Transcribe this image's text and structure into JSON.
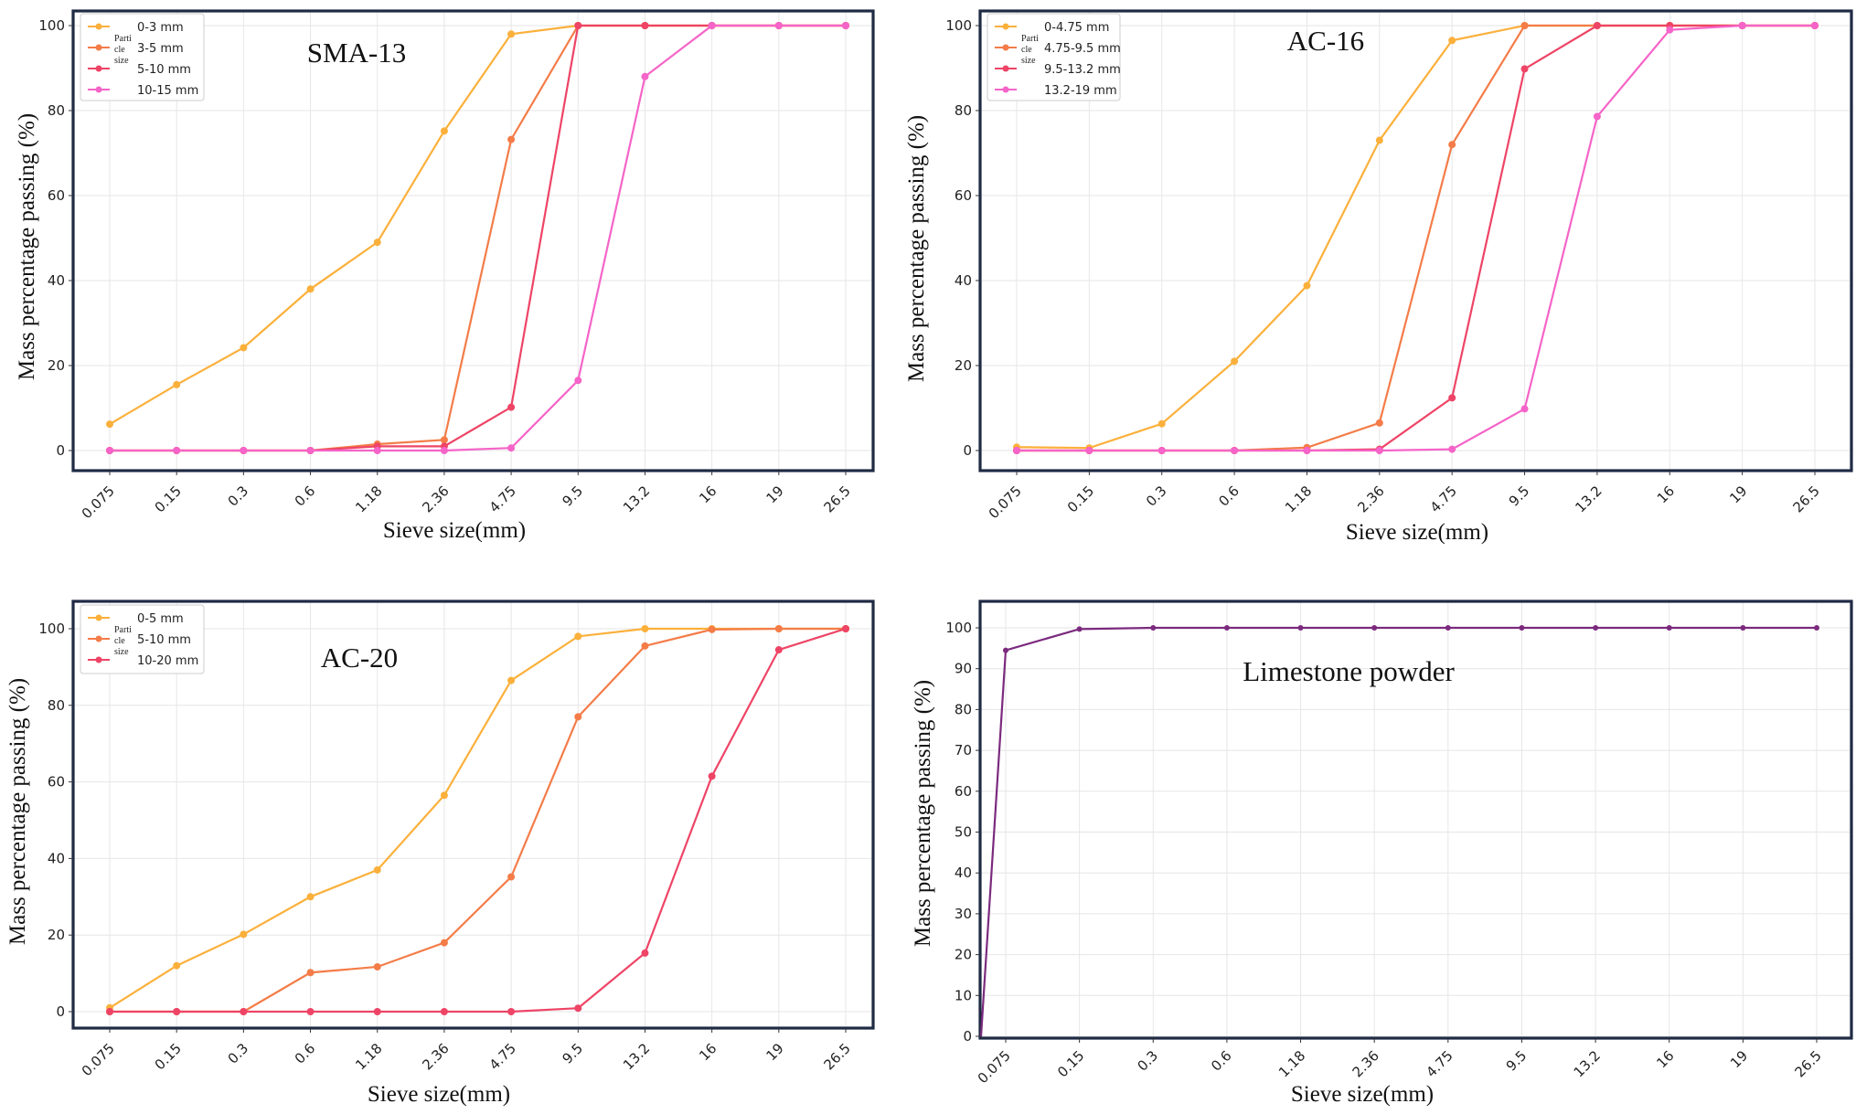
{
  "chart_data": [
    {
      "type": "line",
      "title": "SMA-13",
      "xlabel": "Sieve size(mm)",
      "ylabel": "Mass percentage passing (%)",
      "ylim": [
        0,
        100
      ],
      "yticks": [
        "0",
        "20",
        "40",
        "60",
        "80",
        "100"
      ],
      "categories": [
        "0.075",
        "0.15",
        "0.3",
        "0.6",
        "1.18",
        "2.36",
        "4.75",
        "9.5",
        "13.2",
        "16",
        "19",
        "26.5"
      ],
      "grid": true,
      "legend_position": "top-left",
      "legend_side_label": [
        "Parti",
        "cle",
        "size"
      ],
      "series": [
        {
          "name": "0-3 mm",
          "color": "#fbb03b",
          "values": [
            6.2,
            15.5,
            24.2,
            38,
            49,
            75.2,
            98,
            100,
            100,
            100,
            100,
            100
          ]
        },
        {
          "name": "3-5 mm",
          "color": "#f47c48",
          "values": [
            0,
            0,
            0,
            0,
            1.5,
            2.5,
            73.2,
            100,
            100,
            100,
            100,
            100
          ]
        },
        {
          "name": "5-10 mm",
          "color": "#ee4466",
          "values": [
            0,
            0,
            0,
            0,
            1,
            1,
            10.2,
            100,
            100,
            100,
            100,
            100
          ]
        },
        {
          "name": "10-15 mm",
          "color": "#f564c8",
          "values": [
            0,
            0,
            0,
            0,
            0,
            0,
            0.6,
            16.5,
            88,
            100,
            100,
            100
          ]
        }
      ]
    },
    {
      "type": "line",
      "title": "AC-16",
      "xlabel": "Sieve size(mm)",
      "ylabel": "Mass percentage passing (%)",
      "ylim": [
        0,
        100
      ],
      "yticks": [
        "0",
        "20",
        "40",
        "60",
        "80",
        "100"
      ],
      "categories": [
        "0.075",
        "0.15",
        "0.3",
        "0.6",
        "1.18",
        "2.36",
        "4.75",
        "9.5",
        "13.2",
        "16",
        "19",
        "26.5"
      ],
      "grid": true,
      "legend_position": "top-left",
      "legend_side_label": [
        "Parti",
        "cle",
        "size"
      ],
      "series": [
        {
          "name": "0-4.75 mm",
          "color": "#fbb03b",
          "values": [
            0.8,
            0.6,
            6.3,
            21,
            38.8,
            73,
            96.5,
            100,
            100,
            100,
            100,
            100
          ]
        },
        {
          "name": "4.75-9.5 mm",
          "color": "#f47c48",
          "values": [
            0,
            0,
            0,
            0,
            0.7,
            6.5,
            72,
            100,
            100,
            100,
            100,
            100
          ]
        },
        {
          "name": "9.5-13.2 mm",
          "color": "#ee4466",
          "values": [
            0,
            0,
            0,
            0,
            0,
            0.3,
            12.4,
            89.8,
            100,
            100,
            100,
            100
          ]
        },
        {
          "name": "13.2-19 mm",
          "color": "#f564c8",
          "values": [
            0,
            0,
            0,
            0,
            0,
            0,
            0.3,
            9.8,
            78.6,
            99,
            100,
            100
          ]
        }
      ]
    },
    {
      "type": "line",
      "title": "AC-20",
      "xlabel": "Sieve size(mm)",
      "ylabel": "Mass percentage passing (%)",
      "ylim": [
        0,
        100
      ],
      "yticks": [
        "0",
        "20",
        "40",
        "60",
        "80",
        "100"
      ],
      "categories": [
        "0.075",
        "0.15",
        "0.3",
        "0.6",
        "1.18",
        "2.36",
        "4.75",
        "9.5",
        "13.2",
        "16",
        "19",
        "26.5"
      ],
      "grid": true,
      "legend_position": "top-left",
      "legend_side_label": [
        "Parti",
        "cle",
        "size"
      ],
      "series": [
        {
          "name": "0-5 mm",
          "color": "#fbb03b",
          "values": [
            1,
            12,
            20.2,
            30,
            37,
            56.5,
            86.5,
            98,
            100,
            100,
            100,
            100
          ]
        },
        {
          "name": "5-10 mm",
          "color": "#f47c48",
          "values": [
            0,
            0,
            0,
            10.2,
            11.7,
            18,
            35.2,
            77,
            95.5,
            99.8,
            100,
            100
          ]
        },
        {
          "name": "10-20 mm",
          "color": "#ee4466",
          "values": [
            0,
            0,
            0,
            0,
            0,
            0,
            0,
            0.9,
            15.3,
            61.5,
            94.5,
            100
          ]
        }
      ]
    },
    {
      "type": "line",
      "title": "Limestone powder",
      "xlabel": "Sieve size(mm)",
      "ylabel": "Mass percentage passing (%)",
      "ylim": [
        0,
        100
      ],
      "yticks": [
        "0",
        "10",
        "20",
        "30",
        "40",
        "50",
        "60",
        "70",
        "80",
        "90",
        "100"
      ],
      "categories": [
        "0.075",
        "0.15",
        "0.3",
        "0.6",
        "1.18",
        "2.36",
        "4.75",
        "9.5",
        "13.2",
        "16",
        "19",
        "26.5"
      ],
      "grid": true,
      "series": [
        {
          "color": "#7b2a7e",
          "values": [
            94.5,
            99.7,
            100,
            100,
            100,
            100,
            100,
            100,
            100,
            100,
            100,
            100
          ]
        }
      ]
    }
  ]
}
